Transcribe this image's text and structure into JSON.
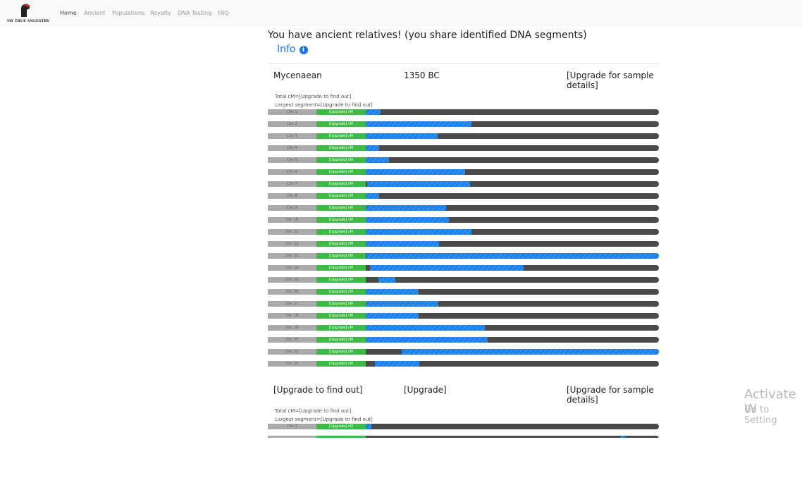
{
  "nav": {
    "logo_text": "MY TRUE ANCESTRY",
    "links": [
      "Home",
      "Ancient",
      "Populations",
      "Royalty",
      "DNA Testing",
      "FAQ"
    ]
  },
  "heading": "You have ancient relatives! (you share identified DNA segments)",
  "info": "Info",
  "matches": [
    {
      "name": "Mycenaean",
      "date": "1350 BC",
      "details": "[Upgrade for sample details]",
      "total_cm": "Total cM=[Upgrade to find out]",
      "largest_segment": "Largest segment=[Upgrade to find out]",
      "chromosomes": [
        {
          "label": "Chr. 1",
          "cm": "[Upgrade] cM",
          "segments": [
            [
              0,
              5
            ]
          ]
        },
        {
          "label": "Chr. 2",
          "cm": "[Upgrade] cM",
          "segments": [
            [
              0,
              36
            ]
          ]
        },
        {
          "label": "Chr. 3",
          "cm": "[Upgrade] cM",
          "segments": [
            [
              0,
              24.5
            ]
          ]
        },
        {
          "label": "Chr. 4",
          "cm": "[Upgrade] cM",
          "segments": [
            [
              0,
              4.6
            ]
          ]
        },
        {
          "label": "Chr. 5",
          "cm": "[Upgrade] cM",
          "segments": [
            [
              0,
              8
            ]
          ]
        },
        {
          "label": "Chr. 6",
          "cm": "[Upgrade] cM",
          "segments": [
            [
              0,
              34
            ]
          ]
        },
        {
          "label": "Chr. 7",
          "cm": "[Upgrade] cM",
          "segments": [
            [
              0.5,
              35.5
            ]
          ]
        },
        {
          "label": "Chr. 8",
          "cm": "[Upgrade] cM",
          "segments": [
            [
              0,
              4.6
            ]
          ]
        },
        {
          "label": "Chr. 9",
          "cm": "[Upgrade] cM",
          "segments": [
            [
              0,
              27.4
            ]
          ]
        },
        {
          "label": "Chr. 10",
          "cm": "[Upgrade] cM",
          "segments": [
            [
              0,
              28.4
            ]
          ]
        },
        {
          "label": "Chr. 11",
          "cm": "[Upgrade] cM",
          "segments": [
            [
              0,
              36
            ]
          ]
        },
        {
          "label": "Chr. 12",
          "cm": "[Upgrade] cM",
          "segments": [
            [
              0,
              25
            ]
          ]
        },
        {
          "label": "Chr. 13",
          "cm": "[Upgrade] cM",
          "segments": [
            [
              0.2,
              100
            ]
          ]
        },
        {
          "label": "Chr. 14",
          "cm": "[Upgrade] cM",
          "segments": [
            [
              1.4,
              53.8
            ]
          ]
        },
        {
          "label": "Chr. 15",
          "cm": "[Upgrade] cM",
          "segments": [
            [
              4.3,
              10.1
            ]
          ]
        },
        {
          "label": "Chr. 16",
          "cm": "[Upgrade] cM",
          "segments": [
            [
              0,
              18
            ]
          ]
        },
        {
          "label": "Chr. 17",
          "cm": "[Upgrade] cM",
          "segments": [
            [
              0,
              24.8
            ]
          ]
        },
        {
          "label": "Chr. 18",
          "cm": "[Upgrade] cM",
          "segments": [
            [
              0,
              18
            ]
          ]
        },
        {
          "label": "Chr. 19",
          "cm": "[Upgrade] cM",
          "segments": [
            [
              0,
              40.6
            ]
          ]
        },
        {
          "label": "Chr. 20",
          "cm": "[Upgrade] cM",
          "segments": [
            [
              0,
              41.6
            ]
          ]
        },
        {
          "label": "Chr. 21",
          "cm": "[Upgrade] cM",
          "segments": [
            [
              12.3,
              100
            ]
          ]
        },
        {
          "label": "Chr. 22",
          "cm": "[Upgrade] cM",
          "segments": [
            [
              3.1,
              18.3
            ]
          ]
        }
      ]
    },
    {
      "name": "[Upgrade to find out]",
      "date": "[Upgrade]",
      "details": "[Upgrade for sample details]",
      "total_cm": "Total cM=[Upgrade to find out]",
      "largest_segment": "Largest segment=[Upgrade to find out]",
      "chromosomes": [
        {
          "label": "Chr. 2",
          "cm": "[Upgrade] cM",
          "segments": [
            [
              0,
              2
            ]
          ]
        },
        {
          "segments": [
            [
              87,
              88.5
            ]
          ]
        }
      ]
    }
  ],
  "watermark": {
    "title": "Activate W",
    "subtitle": "Go to Setting"
  }
}
